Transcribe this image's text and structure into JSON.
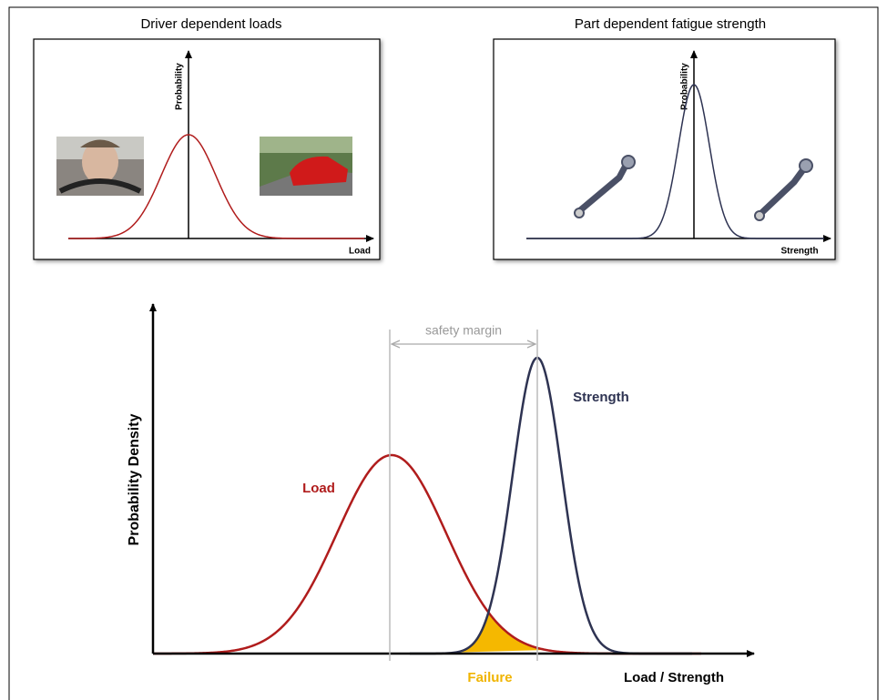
{
  "panels": [
    {
      "title": "Driver dependent loads",
      "y_label": "Probability",
      "x_label": "Load"
    },
    {
      "title": "Part dependent fatigue strength",
      "y_label": "Probability",
      "x_label": "Strength"
    }
  ],
  "main": {
    "y_label": "Probability Density",
    "x_label": "Load / Strength",
    "margin_label": "safety margin",
    "load_label": "Load",
    "strength_label": "Strength",
    "failure_label": "Failure"
  }
}
